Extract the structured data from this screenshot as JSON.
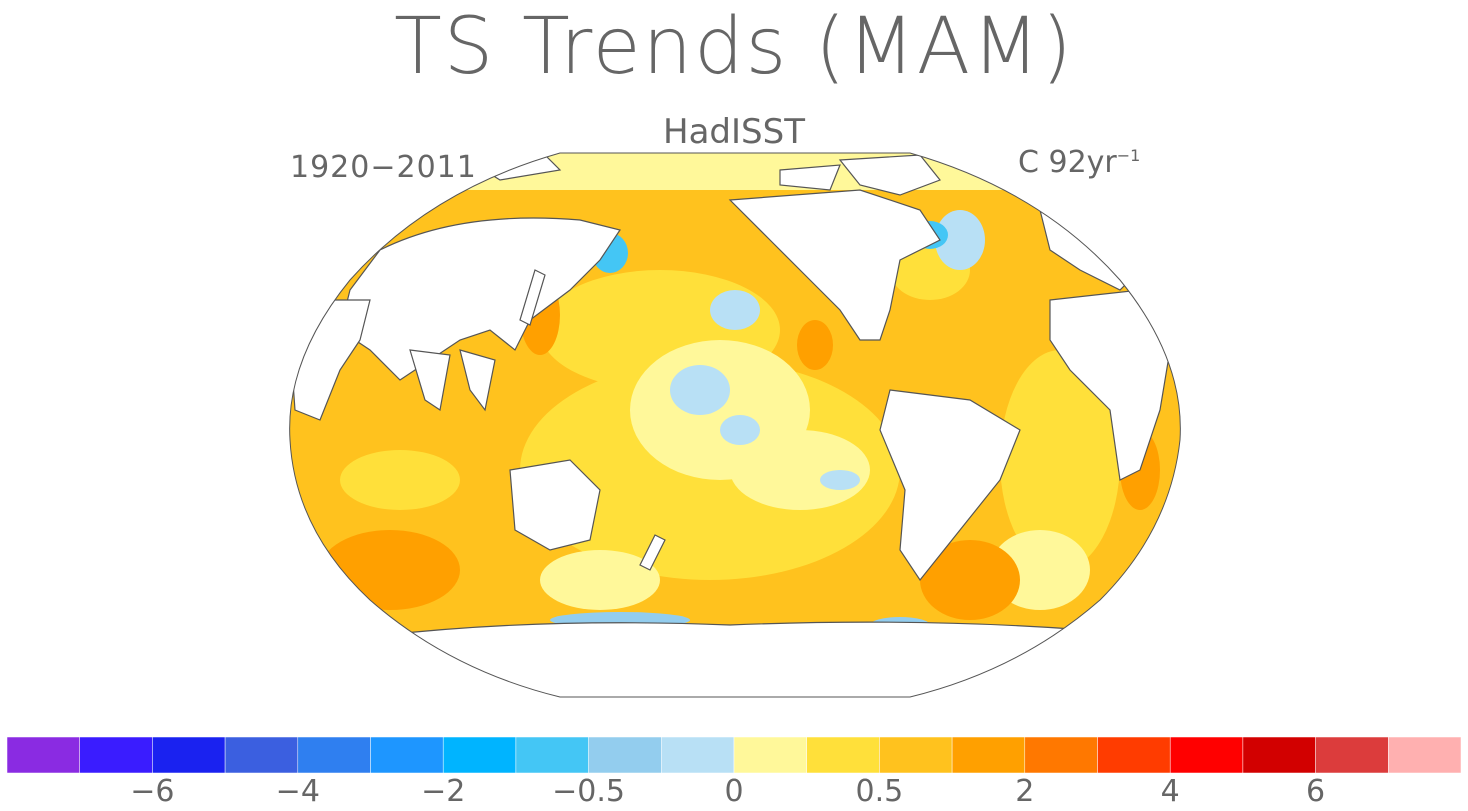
{
  "title": "TS Trends (MAM)",
  "subtitle": "HadISST",
  "period": "1920−2011",
  "units_base": "C 92yr",
  "units_exp": "−1",
  "colorbar": {
    "colors": [
      "#8a2be2",
      "#3a1cff",
      "#1a22f0",
      "#3b5fe0",
      "#2f7ff0",
      "#1e96ff",
      "#00b4ff",
      "#44c6f5",
      "#93cdee",
      "#b8e0f5",
      "#fff89a",
      "#ffe03a",
      "#ffc21e",
      "#ffa000",
      "#ff7800",
      "#ff3c00",
      "#ff0000",
      "#d20000",
      "#dc3c3c",
      "#ffb0b0"
    ],
    "tick_labels": [
      "−6",
      "−4",
      "−2",
      "−0.5",
      "0",
      "0.5",
      "2",
      "4",
      "6"
    ]
  },
  "legend": {
    "ocean": "#ffc21e",
    "land": "#ffffff",
    "coast": "#555555"
  }
}
